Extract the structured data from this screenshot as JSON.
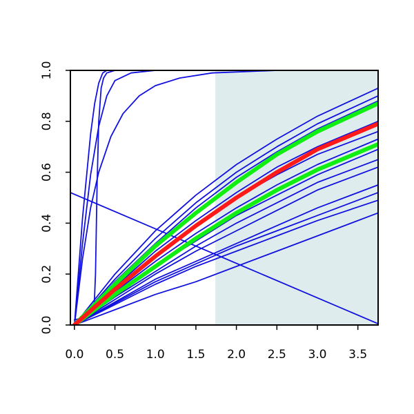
{
  "chart_data": {
    "type": "line",
    "title": "",
    "xlabel": "",
    "ylabel": "",
    "xlim": [
      -0.05,
      3.75
    ],
    "ylim": [
      0.0,
      1.0
    ],
    "x_ticks": [
      0.0,
      0.5,
      1.0,
      1.5,
      2.0,
      2.5,
      3.0,
      3.5
    ],
    "x_tick_labels": [
      "0.0",
      "0.5",
      "1.0",
      "1.5",
      "2.0",
      "2.5",
      "3.0",
      "3.5"
    ],
    "y_ticks": [
      0.0,
      0.2,
      0.4,
      0.6,
      0.8,
      1.0
    ],
    "y_tick_labels": [
      "0.0",
      "0.2",
      "0.4",
      "0.6",
      "0.8",
      "1.0"
    ],
    "grid": false,
    "legend": "none",
    "shaded_region": {
      "x_from": 1.74,
      "x_to": 3.75,
      "color": "#dfeced"
    },
    "colors": {
      "blue": "#1010e0",
      "red": "#ff1a1a",
      "green": "#11ee11",
      "axis": "#000000"
    },
    "series": [
      {
        "color": "blue",
        "x": [
          -0.05,
          3.75
        ],
        "y": [
          0.52,
          0.005
        ]
      },
      {
        "color": "blue",
        "x": [
          0.0,
          0.1,
          0.2,
          0.25,
          0.3,
          0.35,
          0.4,
          0.5,
          0.7,
          1.0,
          3.75
        ],
        "y": [
          0.0,
          0.42,
          0.75,
          0.87,
          0.95,
          0.99,
          1.0,
          1.0,
          1.0,
          1.0,
          1.0
        ]
      },
      {
        "color": "blue",
        "x": [
          0.0,
          0.1,
          0.2,
          0.3,
          0.4,
          0.5,
          0.7,
          1.0,
          3.75
        ],
        "y": [
          0.0,
          0.32,
          0.59,
          0.78,
          0.9,
          0.96,
          0.99,
          1.0,
          1.0
        ]
      },
      {
        "color": "blue",
        "x": [
          0.0,
          0.24,
          0.26,
          0.28,
          0.3,
          0.33,
          0.36,
          0.4,
          0.5,
          0.7,
          3.75
        ],
        "y": [
          0.02,
          0.04,
          0.2,
          0.55,
          0.8,
          0.93,
          0.97,
          0.99,
          1.0,
          1.0,
          1.0
        ]
      },
      {
        "color": "blue",
        "x": [
          0.0,
          0.1,
          0.2,
          0.3,
          0.45,
          0.6,
          0.8,
          1.0,
          1.3,
          1.7,
          2.5,
          3.75
        ],
        "y": [
          0.0,
          0.26,
          0.46,
          0.6,
          0.74,
          0.83,
          0.9,
          0.94,
          0.97,
          0.99,
          1.0,
          1.0
        ]
      },
      {
        "color": "blue",
        "x": [
          0.0,
          0.5,
          1.0,
          1.5,
          2.0,
          2.5,
          3.0,
          3.75
        ],
        "y": [
          0.0,
          0.2,
          0.37,
          0.51,
          0.63,
          0.73,
          0.82,
          0.93
        ]
      },
      {
        "color": "blue",
        "x": [
          0.0,
          0.5,
          1.0,
          1.5,
          2.0,
          2.5,
          3.0,
          3.75
        ],
        "y": [
          0.0,
          0.18,
          0.34,
          0.48,
          0.6,
          0.7,
          0.79,
          0.9
        ]
      },
      {
        "color": "blue",
        "x": [
          0.0,
          0.5,
          1.0,
          1.5,
          2.0,
          2.5,
          3.0,
          3.75
        ],
        "y": [
          0.0,
          0.17,
          0.32,
          0.46,
          0.58,
          0.68,
          0.77,
          0.88
        ]
      },
      {
        "color": "blue",
        "x": [
          0.0,
          0.5,
          1.0,
          1.5,
          2.0,
          2.5,
          3.0,
          3.75
        ],
        "y": [
          0.0,
          0.15,
          0.29,
          0.41,
          0.52,
          0.62,
          0.7,
          0.8
        ]
      },
      {
        "color": "blue",
        "x": [
          0.0,
          0.5,
          1.0,
          1.5,
          2.0,
          2.5,
          3.0,
          3.75
        ],
        "y": [
          0.0,
          0.14,
          0.27,
          0.39,
          0.5,
          0.59,
          0.67,
          0.76
        ]
      },
      {
        "color": "blue",
        "x": [
          0.0,
          0.5,
          1.0,
          1.5,
          2.0,
          2.5,
          3.0,
          3.75
        ],
        "y": [
          0.0,
          0.13,
          0.25,
          0.36,
          0.46,
          0.55,
          0.63,
          0.73
        ]
      },
      {
        "color": "blue",
        "x": [
          0.0,
          0.5,
          1.0,
          1.5,
          2.0,
          2.5,
          3.0,
          3.75
        ],
        "y": [
          0.0,
          0.12,
          0.23,
          0.33,
          0.43,
          0.51,
          0.59,
          0.69
        ]
      },
      {
        "color": "blue",
        "x": [
          0.0,
          0.5,
          1.0,
          1.5,
          2.0,
          2.5,
          3.0,
          3.75
        ],
        "y": [
          0.0,
          0.11,
          0.21,
          0.31,
          0.4,
          0.48,
          0.56,
          0.65
        ]
      },
      {
        "color": "blue",
        "x": [
          0.0,
          0.5,
          1.0,
          1.5,
          2.0,
          2.5,
          3.0,
          3.75
        ],
        "y": [
          0.0,
          0.1,
          0.2,
          0.29,
          0.37,
          0.45,
          0.53,
          0.62
        ]
      },
      {
        "color": "blue",
        "x": [
          0.0,
          0.5,
          1.0,
          1.5,
          2.0,
          2.5,
          3.0,
          3.75
        ],
        "y": [
          0.0,
          0.09,
          0.18,
          0.25,
          0.32,
          0.39,
          0.46,
          0.55
        ]
      },
      {
        "color": "blue",
        "x": [
          0.0,
          0.5,
          1.0,
          1.5,
          2.0,
          2.5,
          3.0,
          3.75
        ],
        "y": [
          0.0,
          0.085,
          0.17,
          0.24,
          0.31,
          0.37,
          0.43,
          0.52
        ]
      },
      {
        "color": "blue",
        "x": [
          0.0,
          0.5,
          1.0,
          1.5,
          2.0,
          2.5,
          3.0,
          3.75
        ],
        "y": [
          0.0,
          0.08,
          0.16,
          0.23,
          0.29,
          0.35,
          0.41,
          0.49
        ]
      },
      {
        "color": "blue",
        "x": [
          0.0,
          0.5,
          1.0,
          1.5,
          2.0,
          2.5,
          3.0,
          3.75
        ],
        "y": [
          0.0,
          0.06,
          0.12,
          0.17,
          0.23,
          0.29,
          0.35,
          0.44
        ]
      },
      {
        "color": "green",
        "width": "thick",
        "x": [
          0.0,
          0.5,
          1.0,
          1.5,
          2.0,
          2.5,
          3.0,
          3.75
        ],
        "y": [
          0.0,
          0.16,
          0.31,
          0.44,
          0.56,
          0.67,
          0.76,
          0.87
        ]
      },
      {
        "color": "green",
        "width": "thick",
        "x": [
          0.0,
          0.5,
          1.0,
          1.5,
          2.0,
          2.5,
          3.0,
          3.75
        ],
        "y": [
          0.0,
          0.12,
          0.23,
          0.34,
          0.44,
          0.53,
          0.61,
          0.71
        ]
      },
      {
        "color": "red",
        "width": "thick",
        "x": [
          0.0,
          0.5,
          1.0,
          1.5,
          2.0,
          2.5,
          3.0,
          3.75
        ],
        "y": [
          0.0,
          0.14,
          0.27,
          0.39,
          0.5,
          0.6,
          0.69,
          0.79
        ]
      }
    ]
  }
}
